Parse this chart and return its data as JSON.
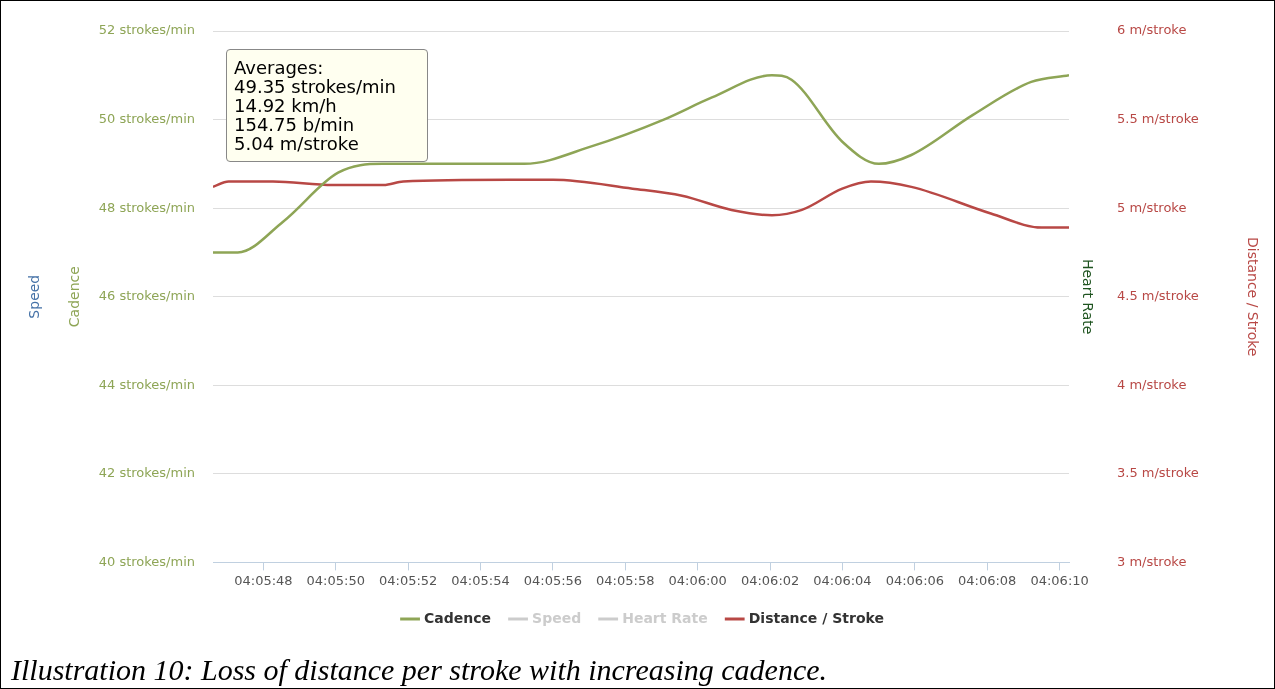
{
  "chart_data": {
    "type": "line",
    "ylabel": "Cadence",
    "y2label": "Distance / Stroke",
    "xlim": [
      4.09628,
      4.10285
    ],
    "xticks": [
      {
        "value": 4.096667,
        "label": "04:05:48"
      },
      {
        "value": 4.097222,
        "label": "04:05:50"
      },
      {
        "value": 4.097778,
        "label": "04:05:52"
      },
      {
        "value": 4.098333,
        "label": "04:05:54"
      },
      {
        "value": 4.098889,
        "label": "04:05:56"
      },
      {
        "value": 4.099444,
        "label": "04:05:58"
      },
      {
        "value": 4.1,
        "label": "04:06:00"
      },
      {
        "value": 4.100556,
        "label": "04:06:02"
      },
      {
        "value": 4.101111,
        "label": "04:06:04"
      },
      {
        "value": 4.101667,
        "label": "04:06:06"
      },
      {
        "value": 4.102222,
        "label": "04:06:08"
      },
      {
        "value": 4.102778,
        "label": "04:06:10"
      }
    ],
    "ylim": [
      40,
      52
    ],
    "yticks": [
      {
        "value": 40,
        "label": "40 strokes/min"
      },
      {
        "value": 42,
        "label": "42 strokes/min"
      },
      {
        "value": 44,
        "label": "44 strokes/min"
      },
      {
        "value": 46,
        "label": "46 strokes/min"
      },
      {
        "value": 48,
        "label": "48 strokes/min"
      },
      {
        "value": 50,
        "label": "50 strokes/min"
      },
      {
        "value": 52,
        "label": "52 strokes/min"
      }
    ],
    "y2lim": [
      3,
      6
    ],
    "y2ticks": [
      {
        "value": 3,
        "label": "3 m/stroke"
      },
      {
        "value": 3.5,
        "label": "3.5 m/stroke"
      },
      {
        "value": 4,
        "label": "4 m/stroke"
      },
      {
        "value": 4.5,
        "label": "4.5 m/stroke"
      },
      {
        "value": 5,
        "label": "5 m/stroke"
      },
      {
        "value": 5.5,
        "label": "5.5 m/stroke"
      },
      {
        "value": 6,
        "label": "6 m/stroke"
      }
    ],
    "grid": "y",
    "legend": "bottom",
    "marker": "none",
    "line_style": "solid",
    "series": [
      {
        "name": "Cadence",
        "color": "#8ea556",
        "x": [
          4.09628,
          4.09647,
          4.09682,
          4.09724,
          4.09758,
          4.09867,
          4.09919,
          4.09974,
          4.10011,
          4.10057,
          4.10072,
          4.10111,
          4.10139,
          4.10164,
          4.10211,
          4.10256,
          4.10285
        ],
        "values": [
          47,
          47,
          47.7,
          48.8,
          49,
          49,
          49.4,
          50,
          50.5,
          51,
          50.9,
          49.5,
          49,
          49.2,
          50.1,
          50.85,
          51
        ]
      },
      {
        "name": "Speed",
        "color": "#cccccc"
      },
      {
        "name": "Heart Rate",
        "color": "#cccccc"
      },
      {
        "name": "Distance / Stroke",
        "color": "#b84845",
        "axis": "y2",
        "x": [
          4.09628,
          4.0964,
          4.09674,
          4.0972,
          4.09759,
          4.09774,
          4.09858,
          4.09889,
          4.0995,
          4.09988,
          4.10026,
          4.10057,
          4.1008,
          4.10111,
          4.10133,
          4.10164,
          4.10225,
          4.10264,
          4.10285
        ],
        "values": [
          5.12,
          5.15,
          5.15,
          5.13,
          5.13,
          5.15,
          5.16,
          5.16,
          5.11,
          5.07,
          4.99,
          4.96,
          4.99,
          5.11,
          5.15,
          5.12,
          4.97,
          4.89,
          4.89
        ]
      }
    ],
    "annotations": [
      "Averages:\n49.35 strokes/min\n14.92 km/h\n154.75 b/min\n5.04 m/stroke",
      "Illustration 10: Loss of distance per stroke with increasing cadence.",
      "Speed",
      "Heart Rate"
    ]
  }
}
